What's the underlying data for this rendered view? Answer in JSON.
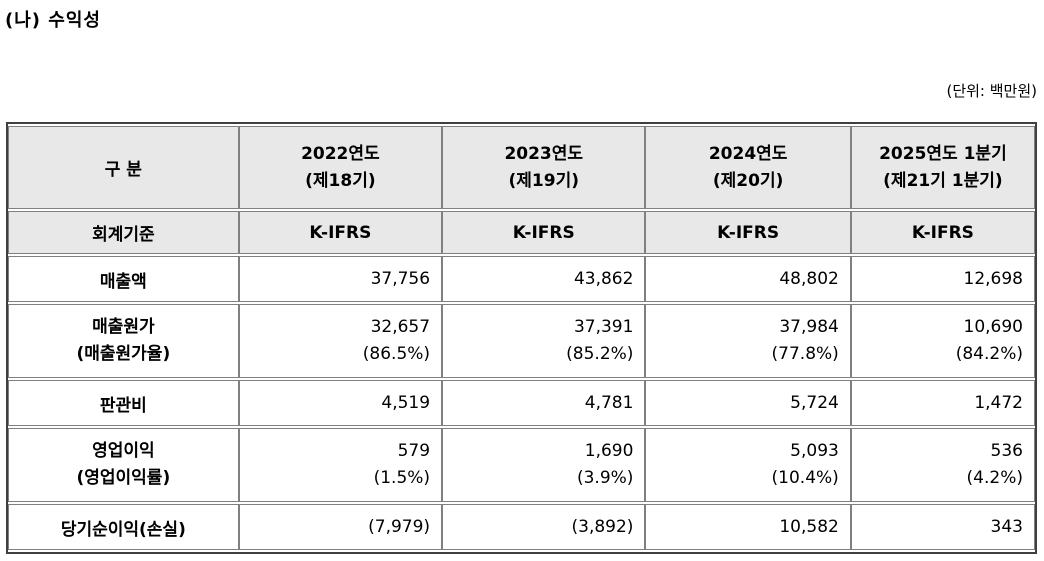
{
  "title": "(나) 수익성",
  "unit_note": "(단위: 백만원)",
  "table": {
    "header": {
      "col0": "구 분",
      "periods": [
        {
          "line1": "2022연도",
          "line2": "(제18기)"
        },
        {
          "line1": "2023연도",
          "line2": "(제19기)"
        },
        {
          "line1": "2024연도",
          "line2": "(제20기)"
        },
        {
          "line1": "2025연도 1분기",
          "line2": "(제21기 1분기)"
        }
      ]
    },
    "accounting_standard": {
      "label": "회계기준",
      "values": [
        "K-IFRS",
        "K-IFRS",
        "K-IFRS",
        "K-IFRS"
      ]
    },
    "rows": {
      "revenue": {
        "label": "매출액",
        "values": [
          "37,756",
          "43,862",
          "48,802",
          "12,698"
        ]
      },
      "cost_of_sales": {
        "label": "매출원가",
        "sublabel": "(매출원가율)",
        "values": [
          "32,657",
          "37,391",
          "37,984",
          "10,690"
        ],
        "subvalues": [
          "(86.5%)",
          "(85.2%)",
          "(77.8%)",
          "(84.2%)"
        ]
      },
      "sga": {
        "label": "판관비",
        "values": [
          "4,519",
          "4,781",
          "5,724",
          "1,472"
        ]
      },
      "operating_profit": {
        "label": "영업이익",
        "sublabel": "(영업이익률)",
        "values": [
          "579",
          "1,690",
          "5,093",
          "536"
        ],
        "subvalues": [
          "(1.5%)",
          "(3.9%)",
          "(10.4%)",
          "(4.2%)"
        ]
      },
      "net_income": {
        "label": "당기순이익(손실)",
        "values": [
          "(7,979)",
          "(3,892)",
          "10,582",
          "343"
        ]
      }
    }
  }
}
